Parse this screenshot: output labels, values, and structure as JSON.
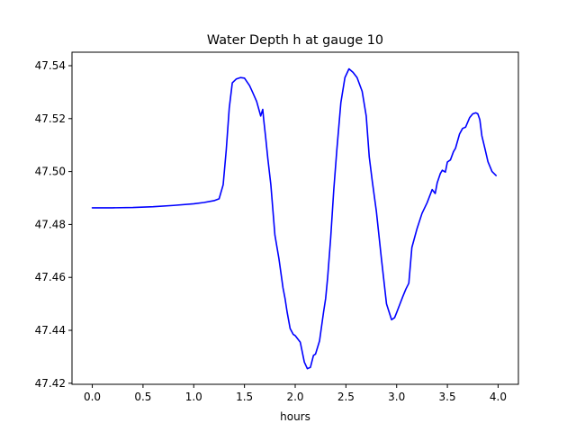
{
  "chart_data": {
    "type": "line",
    "title": "Water Depth h at gauge 10",
    "xlabel": "hours",
    "ylabel": "",
    "xlim": [
      -0.2,
      4.2
    ],
    "ylim": [
      47.4196,
      47.5451
    ],
    "xticks": [
      0.0,
      0.5,
      1.0,
      1.5,
      2.0,
      2.5,
      3.0,
      3.5,
      4.0
    ],
    "xtick_labels": [
      "0.0",
      "0.5",
      "1.0",
      "1.5",
      "2.0",
      "2.5",
      "3.0",
      "3.5",
      "4.0"
    ],
    "yticks": [
      47.42,
      47.44,
      47.46,
      47.48,
      47.5,
      47.52,
      47.54
    ],
    "ytick_labels": [
      "47.42",
      "47.44",
      "47.46",
      "47.48",
      "47.50",
      "47.52",
      "47.54"
    ],
    "grid": false,
    "series": [
      {
        "color": "#0000ff",
        "x": [
          0.0,
          0.2,
          0.4,
          0.6,
          0.8,
          1.0,
          1.1,
          1.2,
          1.25,
          1.29,
          1.32,
          1.35,
          1.38,
          1.42,
          1.46,
          1.5,
          1.55,
          1.58,
          1.62,
          1.66,
          1.68,
          1.69,
          1.7,
          1.71,
          1.73,
          1.76,
          1.8,
          1.84,
          1.88,
          1.9,
          1.92,
          1.95,
          1.98,
          2.0,
          2.05,
          2.09,
          2.12,
          2.15,
          2.18,
          2.2,
          2.24,
          2.28,
          2.3,
          2.32,
          2.35,
          2.38,
          2.41,
          2.45,
          2.49,
          2.53,
          2.57,
          2.61,
          2.66,
          2.7,
          2.73,
          2.76,
          2.8,
          2.85,
          2.9,
          2.95,
          2.98,
          3.0,
          3.03,
          3.06,
          3.09,
          3.12,
          3.15,
          3.18,
          3.2,
          3.25,
          3.3,
          3.35,
          3.38,
          3.4,
          3.43,
          3.45,
          3.48,
          3.5,
          3.53,
          3.56,
          3.58,
          3.62,
          3.65,
          3.68,
          3.72,
          3.75,
          3.78,
          3.8,
          3.82,
          3.84,
          3.87,
          3.9,
          3.94,
          3.98
        ],
        "y": [
          47.4863,
          47.4863,
          47.4864,
          47.4867,
          47.4872,
          47.4878,
          47.4883,
          47.489,
          47.4897,
          47.495,
          47.508,
          47.524,
          47.5335,
          47.535,
          47.5355,
          47.5353,
          47.5325,
          47.53,
          47.5265,
          47.521,
          47.5235,
          47.5195,
          47.516,
          47.5125,
          47.505,
          47.495,
          47.476,
          47.467,
          47.456,
          47.452,
          47.447,
          47.4407,
          47.4385,
          47.438,
          47.4355,
          47.428,
          47.4255,
          47.426,
          47.4305,
          47.431,
          47.436,
          47.447,
          47.452,
          47.46,
          47.475,
          47.493,
          47.508,
          47.526,
          47.5355,
          47.5388,
          47.5375,
          47.5355,
          47.5303,
          47.521,
          47.5055,
          47.4963,
          47.485,
          47.467,
          47.45,
          47.444,
          47.4448,
          47.4467,
          47.4497,
          47.4527,
          47.4555,
          47.4578,
          47.4713,
          47.4755,
          47.4783,
          47.4842,
          47.4882,
          47.4932,
          47.4917,
          47.4958,
          47.4992,
          47.5005,
          47.4998,
          47.5036,
          47.5044,
          47.5075,
          47.5088,
          47.5142,
          47.5163,
          47.5168,
          47.5204,
          47.5218,
          47.5222,
          47.5218,
          47.5196,
          47.5135,
          47.5087,
          47.5037,
          47.5,
          47.4985
        ]
      }
    ]
  }
}
